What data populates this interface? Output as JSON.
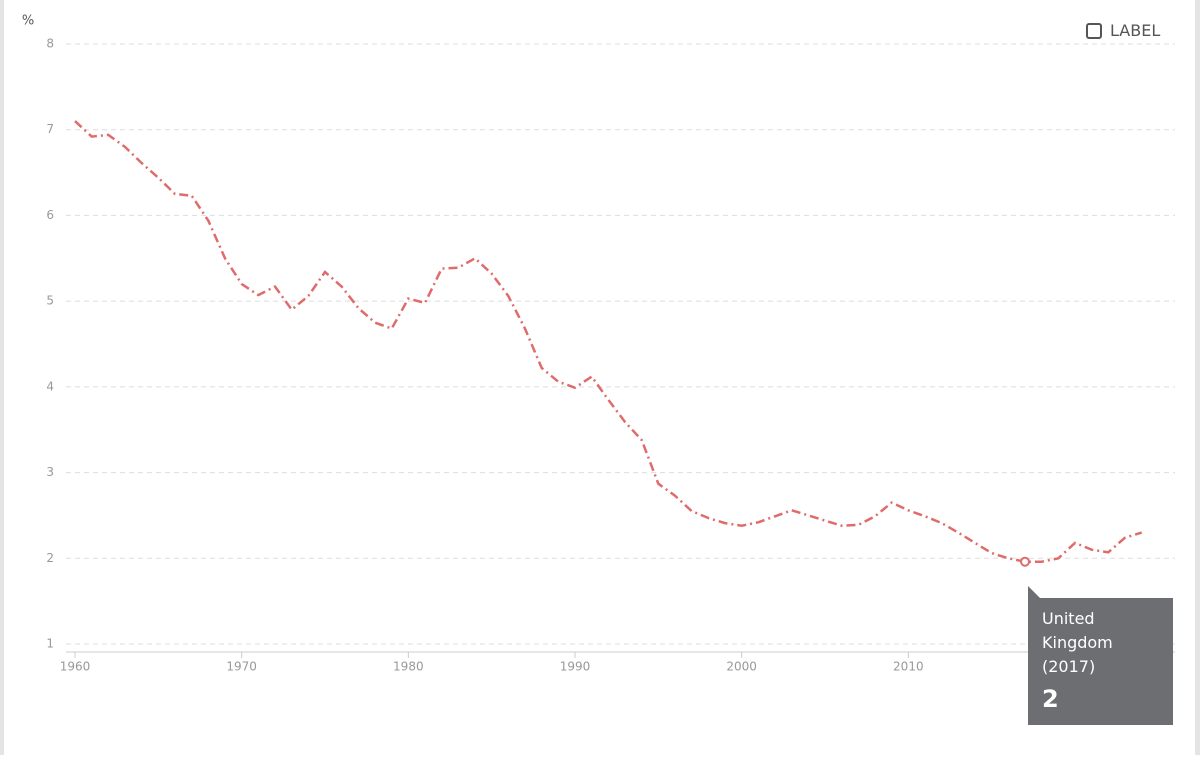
{
  "chart_data": {
    "type": "line",
    "y_unit": "%",
    "x": [
      1960,
      1961,
      1962,
      1963,
      1964,
      1965,
      1966,
      1967,
      1968,
      1969,
      1970,
      1971,
      1972,
      1973,
      1974,
      1975,
      1976,
      1977,
      1978,
      1979,
      1980,
      1981,
      1982,
      1983,
      1984,
      1985,
      1986,
      1987,
      1988,
      1989,
      1990,
      1991,
      1992,
      1993,
      1994,
      1995,
      1996,
      1997,
      1998,
      1999,
      2000,
      2001,
      2002,
      2003,
      2004,
      2005,
      2006,
      2007,
      2008,
      2009,
      2010,
      2011,
      2012,
      2013,
      2014,
      2015,
      2016,
      2017,
      2018,
      2019,
      2020,
      2021,
      2022,
      2023,
      2024
    ],
    "series": [
      {
        "name": "United Kingdom",
        "color": "#df6b6b",
        "values": [
          7.1,
          6.92,
          6.94,
          6.8,
          6.61,
          6.44,
          6.25,
          6.23,
          5.94,
          5.5,
          5.2,
          5.07,
          5.17,
          4.9,
          5.06,
          5.34,
          5.17,
          4.92,
          4.75,
          4.68,
          5.03,
          4.98,
          5.38,
          5.39,
          5.5,
          5.32,
          5.06,
          4.68,
          4.22,
          4.06,
          3.99,
          4.12,
          3.85,
          3.59,
          3.38,
          2.87,
          2.73,
          2.55,
          2.47,
          2.41,
          2.38,
          2.42,
          2.49,
          2.56,
          2.5,
          2.44,
          2.38,
          2.39,
          2.49,
          2.65,
          2.56,
          2.49,
          2.41,
          2.3,
          2.18,
          2.06,
          2.0,
          1.96,
          1.96,
          2.0,
          2.18,
          2.1,
          2.07,
          2.24,
          2.3
        ]
      }
    ],
    "xlim": [
      1960,
      2026
    ],
    "xticks": [
      1960,
      1970,
      1980,
      1990,
      2000,
      2010
    ],
    "ylim": [
      1,
      8
    ],
    "yticks": [
      1,
      2,
      3,
      4,
      5,
      6,
      7,
      8
    ],
    "grid": true,
    "checkbox_label": "LABEL",
    "tooltip": {
      "x": 2017,
      "name": "United Kingdom",
      "x_label": "(2017)",
      "value_label": "2"
    }
  }
}
